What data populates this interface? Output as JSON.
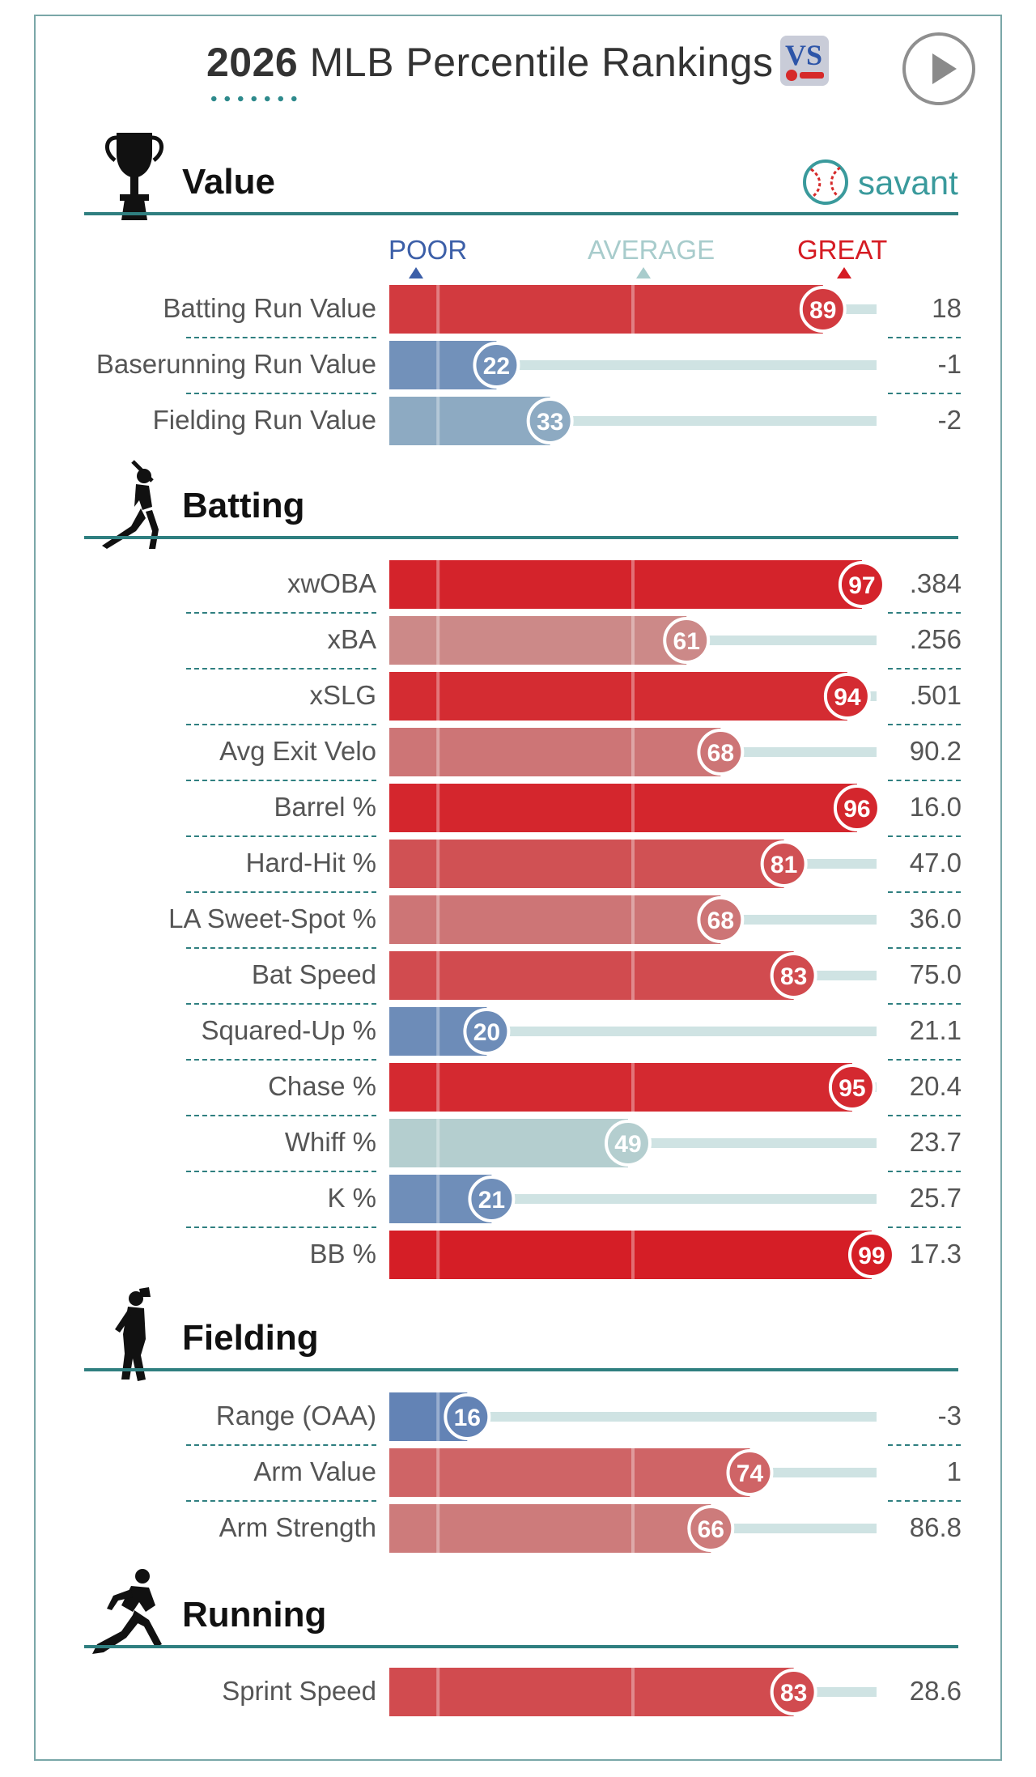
{
  "header": {
    "title_year": "2026",
    "title_rest": "MLB Percentile Rankings",
    "logo_text": "VS"
  },
  "brand": {
    "savant_label": "savant"
  },
  "scale": {
    "poor": "POOR",
    "average": "AVERAGE",
    "great": "GREAT"
  },
  "sections": {
    "value": "Value",
    "batting": "Batting",
    "fielding": "Fielding",
    "running": "Running"
  },
  "colors": {
    "poor": "#3c5fa8",
    "average": "#b6d0d0",
    "great": "#d51b23",
    "accent": "#2f7f80"
  },
  "chart_data": {
    "type": "bar",
    "orientation": "horizontal",
    "xlim": [
      0,
      100
    ],
    "scale_labels": [
      "POOR",
      "AVERAGE",
      "GREAT"
    ],
    "groups": [
      {
        "name": "Value",
        "metrics": [
          {
            "label": "Batting Run Value",
            "percentile": 89,
            "value": "18"
          },
          {
            "label": "Baserunning Run Value",
            "percentile": 22,
            "value": "-1"
          },
          {
            "label": "Fielding Run Value",
            "percentile": 33,
            "value": "-2"
          }
        ]
      },
      {
        "name": "Batting",
        "metrics": [
          {
            "label": "xwOBA",
            "percentile": 97,
            "value": ".384"
          },
          {
            "label": "xBA",
            "percentile": 61,
            "value": ".256"
          },
          {
            "label": "xSLG",
            "percentile": 94,
            "value": ".501"
          },
          {
            "label": "Avg Exit Velo",
            "percentile": 68,
            "value": "90.2"
          },
          {
            "label": "Barrel %",
            "percentile": 96,
            "value": "16.0"
          },
          {
            "label": "Hard-Hit %",
            "percentile": 81,
            "value": "47.0"
          },
          {
            "label": "LA Sweet-Spot %",
            "percentile": 68,
            "value": "36.0"
          },
          {
            "label": "Bat Speed",
            "percentile": 83,
            "value": "75.0"
          },
          {
            "label": "Squared-Up %",
            "percentile": 20,
            "value": "21.1"
          },
          {
            "label": "Chase %",
            "percentile": 95,
            "value": "20.4"
          },
          {
            "label": "Whiff %",
            "percentile": 49,
            "value": "23.7"
          },
          {
            "label": "K %",
            "percentile": 21,
            "value": "25.7"
          },
          {
            "label": "BB %",
            "percentile": 99,
            "value": "17.3"
          }
        ]
      },
      {
        "name": "Fielding",
        "metrics": [
          {
            "label": "Range (OAA)",
            "percentile": 16,
            "value": "-3"
          },
          {
            "label": "Arm Value",
            "percentile": 74,
            "value": "1"
          },
          {
            "label": "Arm Strength",
            "percentile": 66,
            "value": "86.8"
          }
        ]
      },
      {
        "name": "Running",
        "metrics": [
          {
            "label": "Sprint Speed",
            "percentile": 83,
            "value": "28.6"
          }
        ]
      }
    ]
  }
}
